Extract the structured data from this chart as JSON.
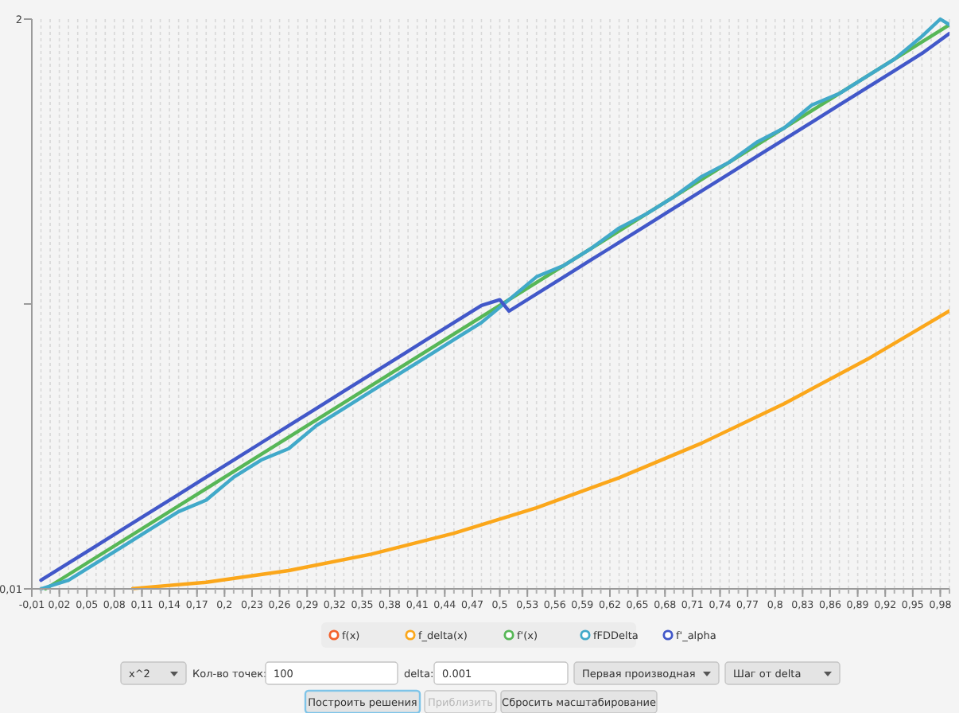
{
  "chart_data": {
    "type": "line",
    "xlim": [
      -0.01,
      0.99
    ],
    "ylim": [
      0.01,
      2
    ],
    "xticks": [
      {
        "value": -0.01,
        "label": "-0,01"
      },
      {
        "value": 0.02,
        "label": "0,02"
      },
      {
        "value": 0.05,
        "label": "0,05"
      },
      {
        "value": 0.08,
        "label": "0,08"
      },
      {
        "value": 0.11,
        "label": "0,11"
      },
      {
        "value": 0.14,
        "label": "0,14"
      },
      {
        "value": 0.17,
        "label": "0,17"
      },
      {
        "value": 0.2,
        "label": "0,2"
      },
      {
        "value": 0.23,
        "label": "0,23"
      },
      {
        "value": 0.26,
        "label": "0,26"
      },
      {
        "value": 0.29,
        "label": "0,29"
      },
      {
        "value": 0.32,
        "label": "0,32"
      },
      {
        "value": 0.35,
        "label": "0,35"
      },
      {
        "value": 0.38,
        "label": "0,38"
      },
      {
        "value": 0.41,
        "label": "0,41"
      },
      {
        "value": 0.44,
        "label": "0,44"
      },
      {
        "value": 0.47,
        "label": "0,47"
      },
      {
        "value": 0.5,
        "label": "0,5"
      },
      {
        "value": 0.53,
        "label": "0,53"
      },
      {
        "value": 0.56,
        "label": "0,56"
      },
      {
        "value": 0.59,
        "label": "0,59"
      },
      {
        "value": 0.62,
        "label": "0,62"
      },
      {
        "value": 0.65,
        "label": "0,65"
      },
      {
        "value": 0.68,
        "label": "0,68"
      },
      {
        "value": 0.71,
        "label": "0,71"
      },
      {
        "value": 0.74,
        "label": "0,74"
      },
      {
        "value": 0.77,
        "label": "0,77"
      },
      {
        "value": 0.8,
        "label": "0,8"
      },
      {
        "value": 0.83,
        "label": "0,83"
      },
      {
        "value": 0.86,
        "label": "0,86"
      },
      {
        "value": 0.89,
        "label": "0,89"
      },
      {
        "value": 0.92,
        "label": "0,92"
      },
      {
        "value": 0.95,
        "label": "0,95"
      },
      {
        "value": 0.98,
        "label": "0,98"
      }
    ],
    "yticks": [
      {
        "value": 0.01,
        "label": "0,01"
      },
      {
        "value": 1.005,
        "label": null
      },
      2
    ],
    "grid": "x",
    "legend": "bottom",
    "marker": "none",
    "line_style": "solid",
    "series": [
      {
        "name": "f(x)",
        "color": "#f3622d",
        "values": [
          null
        ]
      },
      {
        "name": "f_delta(x)",
        "color": "#fba71b",
        "x": [
          0.1,
          0.18,
          0.27,
          0.36,
          0.45,
          0.54,
          0.63,
          0.72,
          0.81,
          0.9,
          0.99
        ],
        "values": [
          0.011,
          0.033,
          0.074,
          0.131,
          0.204,
          0.293,
          0.398,
          0.519,
          0.657,
          0.811,
          0.981
        ]
      },
      {
        "name": "f'(x)",
        "color": "#57b757",
        "x": [
          0.005,
          0.33,
          0.66,
          0.99
        ],
        "values": [
          0.01,
          0.66,
          1.32,
          1.98
        ]
      },
      {
        "name": "fFDDelta",
        "color": "#41a9c9",
        "x": [
          0,
          0.03,
          0.06,
          0.09,
          0.12,
          0.15,
          0.18,
          0.21,
          0.24,
          0.27,
          0.3,
          0.33,
          0.36,
          0.39,
          0.42,
          0.45,
          0.48,
          0.51,
          0.54,
          0.57,
          0.6,
          0.63,
          0.66,
          0.69,
          0.72,
          0.75,
          0.78,
          0.81,
          0.84,
          0.87,
          0.9,
          0.93,
          0.96,
          0.98,
          0.99
        ],
        "values": [
          0.01,
          0.04,
          0.1,
          0.16,
          0.22,
          0.28,
          0.32,
          0.4,
          0.46,
          0.5,
          0.58,
          0.64,
          0.7,
          0.76,
          0.82,
          0.88,
          0.94,
          1.02,
          1.1,
          1.14,
          1.2,
          1.27,
          1.32,
          1.38,
          1.45,
          1.5,
          1.57,
          1.62,
          1.7,
          1.74,
          1.8,
          1.86,
          1.94,
          2,
          1.98
        ]
      },
      {
        "name": "f'_alpha",
        "color": "#4258c9",
        "x": [
          0,
          0.03,
          0.06,
          0.09,
          0.12,
          0.15,
          0.18,
          0.21,
          0.24,
          0.27,
          0.3,
          0.33,
          0.36,
          0.39,
          0.42,
          0.45,
          0.48,
          0.5,
          0.51,
          0.54,
          0.57,
          0.6,
          0.63,
          0.66,
          0.69,
          0.72,
          0.75,
          0.78,
          0.81,
          0.84,
          0.87,
          0.9,
          0.93,
          0.96,
          0.99
        ],
        "values": [
          0.04,
          0.1,
          0.16,
          0.22,
          0.28,
          0.34,
          0.4,
          0.46,
          0.52,
          0.58,
          0.64,
          0.7,
          0.76,
          0.82,
          0.88,
          0.94,
          1,
          1.02,
          0.98,
          1.04,
          1.1,
          1.16,
          1.22,
          1.28,
          1.34,
          1.4,
          1.46,
          1.52,
          1.58,
          1.64,
          1.7,
          1.76,
          1.82,
          1.88,
          1.95
        ]
      }
    ],
    "annotations": [
      "x^2",
      "Кол-во точек:",
      "100",
      "delta:",
      "0.001",
      "Первая производная",
      "Шаг от delta",
      "Построить решения",
      "Приблизить",
      "Сбросить масштабирование"
    ]
  }
}
